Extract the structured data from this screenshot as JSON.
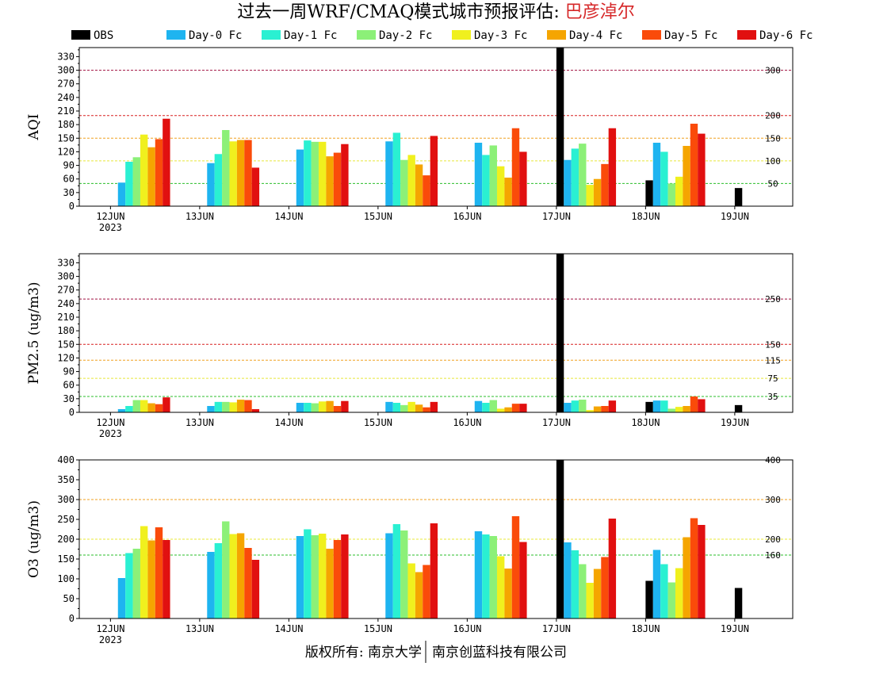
{
  "title": {
    "main": "过去一周WRF/CMAQ模式城市预报评估: ",
    "location": "巴彦淖尔",
    "location_color": "#d62728"
  },
  "legend": [
    {
      "name": "OBS",
      "color": "#000000"
    },
    {
      "name": "Day-0 Fc",
      "color": "#1eb4f0"
    },
    {
      "name": "Day-1 Fc",
      "color": "#2af0d2"
    },
    {
      "name": "Day-2 Fc",
      "color": "#8cf078"
    },
    {
      "name": "Day-3 Fc",
      "color": "#f0f01e"
    },
    {
      "name": "Day-4 Fc",
      "color": "#f5a500"
    },
    {
      "name": "Day-5 Fc",
      "color": "#fa4b0a"
    },
    {
      "name": "Day-6 Fc",
      "color": "#e11010"
    }
  ],
  "footer": {
    "left": "版权所有: 南京大学",
    "right": "南京创蓝科技有限公司"
  },
  "chart_data": [
    {
      "type": "bar",
      "ylabel": "AQI",
      "ylim": [
        0,
        350
      ],
      "yticks": [
        0,
        30,
        60,
        90,
        120,
        150,
        180,
        210,
        240,
        270,
        300,
        330
      ],
      "categories": [
        "12JUN",
        "13JUN",
        "14JUN",
        "15JUN",
        "16JUN",
        "17JUN",
        "18JUN",
        "19JUN"
      ],
      "year_label": "2023",
      "thresholds": [
        {
          "value": 50,
          "label": "50",
          "color": "#2bbf2b"
        },
        {
          "value": 100,
          "label": "100",
          "color": "#e8e83a"
        },
        {
          "value": 150,
          "label": "150",
          "color": "#f0a020"
        },
        {
          "value": 200,
          "label": "200",
          "color": "#d82020"
        },
        {
          "value": 300,
          "label": "300",
          "color": "#a01040"
        }
      ],
      "series": [
        {
          "name": "OBS",
          "values": [
            null,
            null,
            null,
            null,
            null,
            350,
            57,
            40
          ]
        },
        {
          "name": "Day-0 Fc",
          "values": [
            52,
            95,
            125,
            143,
            140,
            102,
            140,
            null
          ]
        },
        {
          "name": "Day-1 Fc",
          "values": [
            98,
            115,
            145,
            162,
            113,
            127,
            120,
            null
          ]
        },
        {
          "name": "Day-2 Fc",
          "values": [
            108,
            168,
            142,
            102,
            134,
            138,
            50,
            null
          ]
        },
        {
          "name": "Day-3 Fc",
          "values": [
            158,
            143,
            142,
            113,
            88,
            47,
            65,
            null
          ]
        },
        {
          "name": "Day-4 Fc",
          "values": [
            130,
            146,
            110,
            92,
            63,
            60,
            133,
            null
          ]
        },
        {
          "name": "Day-5 Fc",
          "values": [
            148,
            146,
            118,
            68,
            172,
            93,
            182,
            null
          ]
        },
        {
          "name": "Day-6 Fc",
          "values": [
            193,
            85,
            137,
            155,
            120,
            172,
            160,
            null
          ]
        }
      ]
    },
    {
      "type": "bar",
      "ylabel": "PM2.5 (ug/m3)",
      "ylim": [
        0,
        350
      ],
      "yticks": [
        0,
        30,
        60,
        90,
        120,
        150,
        180,
        210,
        240,
        270,
        300,
        330
      ],
      "categories": [
        "12JUN",
        "13JUN",
        "14JUN",
        "15JUN",
        "16JUN",
        "17JUN",
        "18JUN",
        "19JUN"
      ],
      "year_label": "2023",
      "thresholds": [
        {
          "value": 35,
          "label": "35",
          "color": "#2bbf2b"
        },
        {
          "value": 75,
          "label": "75",
          "color": "#e8e83a"
        },
        {
          "value": 115,
          "label": "115",
          "color": "#f0a020"
        },
        {
          "value": 150,
          "label": "150",
          "color": "#d82020"
        },
        {
          "value": 250,
          "label": "250",
          "color": "#a01040"
        }
      ],
      "series": [
        {
          "name": "OBS",
          "values": [
            null,
            null,
            null,
            null,
            null,
            350,
            23,
            16
          ]
        },
        {
          "name": "Day-0 Fc",
          "values": [
            7,
            14,
            21,
            23,
            25,
            21,
            26,
            null
          ]
        },
        {
          "name": "Day-1 Fc",
          "values": [
            14,
            23,
            21,
            21,
            21,
            26,
            26,
            null
          ]
        },
        {
          "name": "Day-2 Fc",
          "values": [
            27,
            23,
            20,
            16,
            27,
            28,
            8,
            null
          ]
        },
        {
          "name": "Day-3 Fc",
          "values": [
            27,
            22,
            24,
            23,
            8,
            5,
            12,
            null
          ]
        },
        {
          "name": "Day-4 Fc",
          "values": [
            20,
            28,
            25,
            17,
            11,
            13,
            14,
            null
          ]
        },
        {
          "name": "Day-5 Fc",
          "values": [
            18,
            27,
            14,
            11,
            19,
            14,
            35,
            null
          ]
        },
        {
          "name": "Day-6 Fc",
          "values": [
            33,
            7,
            25,
            23,
            19,
            26,
            29,
            null
          ]
        }
      ]
    },
    {
      "type": "bar",
      "ylabel": "O3 (ug/m3)",
      "ylim": [
        0,
        400
      ],
      "yticks": [
        0,
        50,
        100,
        150,
        200,
        250,
        300,
        350,
        400
      ],
      "categories": [
        "12JUN",
        "13JUN",
        "14JUN",
        "15JUN",
        "16JUN",
        "17JUN",
        "18JUN",
        "19JUN"
      ],
      "year_label": "2023",
      "thresholds": [
        {
          "value": 160,
          "label": "160",
          "color": "#2bbf2b"
        },
        {
          "value": 200,
          "label": "200",
          "color": "#e8e83a"
        },
        {
          "value": 300,
          "label": "300",
          "color": "#f0a020"
        },
        {
          "value": 400,
          "label": "400",
          "color": "#d82020"
        }
      ],
      "series": [
        {
          "name": "OBS",
          "values": [
            null,
            null,
            null,
            null,
            null,
            400,
            95,
            77
          ]
        },
        {
          "name": "Day-0 Fc",
          "values": [
            102,
            168,
            208,
            215,
            220,
            192,
            173,
            null
          ]
        },
        {
          "name": "Day-1 Fc",
          "values": [
            165,
            190,
            225,
            238,
            212,
            172,
            137,
            null
          ]
        },
        {
          "name": "Day-2 Fc",
          "values": [
            176,
            245,
            210,
            222,
            208,
            137,
            91,
            null
          ]
        },
        {
          "name": "Day-3 Fc",
          "values": [
            233,
            213,
            214,
            139,
            157,
            90,
            127,
            null
          ]
        },
        {
          "name": "Day-4 Fc",
          "values": [
            197,
            215,
            176,
            117,
            126,
            125,
            205,
            null
          ]
        },
        {
          "name": "Day-5 Fc",
          "values": [
            230,
            178,
            198,
            135,
            258,
            155,
            253,
            null
          ]
        },
        {
          "name": "Day-6 Fc",
          "values": [
            198,
            148,
            212,
            240,
            193,
            252,
            236,
            null
          ]
        }
      ]
    }
  ]
}
